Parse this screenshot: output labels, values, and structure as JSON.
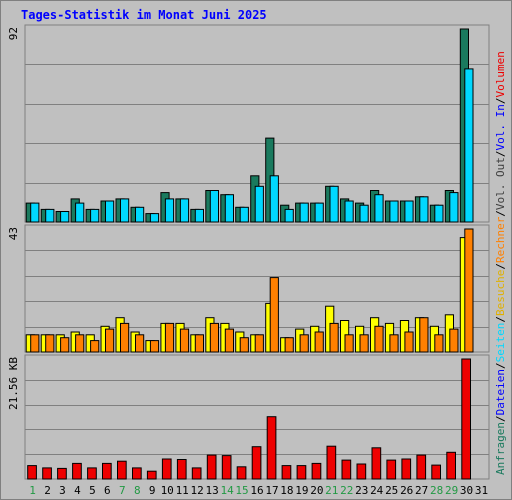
{
  "title": "Tages-Statistik im Monat Juni 2025",
  "colors": {
    "background": "#c0c0c0",
    "plot_border": "#808080",
    "gridline": "#808080",
    "title": "#0000ff",
    "hits": "#1a7a5e",
    "files": "#00d8ff",
    "visits": "#ffff00",
    "pages": "#ff8000",
    "volume": "#ee0000",
    "weekday_label": "#000000",
    "weekend_label": "#229944"
  },
  "chart_data": {
    "type": "bar",
    "x": [
      1,
      2,
      3,
      4,
      5,
      6,
      7,
      8,
      9,
      10,
      11,
      12,
      13,
      14,
      15,
      16,
      17,
      18,
      19,
      20,
      21,
      22,
      23,
      24,
      25,
      26,
      27,
      28,
      29,
      30,
      31
    ],
    "weekend_days": [
      1,
      7,
      8,
      14,
      15,
      21,
      22,
      28,
      29
    ],
    "grid": true,
    "panels": [
      {
        "y_max_label": "92",
        "ylim": [
          0,
          92
        ],
        "series": [
          {
            "name": "Anfragen",
            "color": "#1a7a5e",
            "values": [
              9,
              6,
              5,
              11,
              6,
              10,
              11,
              7,
              4,
              14,
              11,
              6,
              15,
              13,
              7,
              22,
              40,
              8,
              9,
              9,
              17,
              11,
              9,
              15,
              10,
              10,
              12,
              8,
              15,
              92,
              0
            ]
          },
          {
            "name": "Dateien",
            "color": "#00d8ff",
            "values": [
              9,
              6,
              5,
              9,
              6,
              10,
              11,
              7,
              4,
              11,
              11,
              6,
              15,
              13,
              7,
              17,
              22,
              6,
              9,
              9,
              17,
              10,
              8,
              13,
              10,
              10,
              12,
              8,
              14,
              73,
              0
            ]
          }
        ]
      },
      {
        "y_max_label": "43",
        "ylim": [
          0,
          43
        ],
        "series": [
          {
            "name": "Besuche",
            "color": "#ffff00",
            "values": [
              6,
              6,
              6,
              7,
              6,
              9,
              12,
              7,
              4,
              10,
              10,
              6,
              12,
              10,
              7,
              6,
              17,
              5,
              8,
              9,
              16,
              11,
              9,
              12,
              10,
              11,
              12,
              9,
              13,
              40,
              0
            ]
          },
          {
            "name": "Rechner",
            "color": "#ff8000",
            "values": [
              6,
              6,
              5,
              6,
              4,
              8,
              10,
              6,
              4,
              10,
              8,
              6,
              10,
              8,
              5,
              6,
              26,
              5,
              6,
              7,
              10,
              6,
              6,
              9,
              6,
              7,
              12,
              6,
              8,
              43,
              0
            ]
          }
        ]
      },
      {
        "y_max_label": "21.56 KB",
        "ylim": [
          0,
          21.56
        ],
        "series": [
          {
            "name": "Volumen",
            "color": "#ee0000",
            "values": [
              2.4,
              2.0,
              1.9,
              2.8,
              2.0,
              2.8,
              3.2,
              2.0,
              1.4,
              3.6,
              3.5,
              2.0,
              4.3,
              4.2,
              2.2,
              5.8,
              11.2,
              2.4,
              2.4,
              2.8,
              5.9,
              3.4,
              2.7,
              5.6,
              3.4,
              3.6,
              4.3,
              2.5,
              4.8,
              21.56,
              0
            ]
          }
        ]
      }
    ]
  },
  "legend": [
    {
      "text": "Anfragen",
      "color": "#1a7a5e"
    },
    {
      "text": "/",
      "color": "#000000"
    },
    {
      "text": "Dateien",
      "color": "#0000ff"
    },
    {
      "text": "/",
      "color": "#000000"
    },
    {
      "text": "Seiten",
      "color": "#00d8ff"
    },
    {
      "text": "/",
      "color": "#000000"
    },
    {
      "text": "Besuche",
      "color": "#e0b000"
    },
    {
      "text": "/",
      "color": "#000000"
    },
    {
      "text": "Rechner",
      "color": "#ff8000"
    },
    {
      "text": "/",
      "color": "#000000"
    },
    {
      "text": "Vol. Out",
      "color": "#404040"
    },
    {
      "text": "/",
      "color": "#000000"
    },
    {
      "text": "Vol. In",
      "color": "#0000ff"
    },
    {
      "text": "/",
      "color": "#000000"
    },
    {
      "text": "Volumen",
      "color": "#ee0000"
    }
  ]
}
